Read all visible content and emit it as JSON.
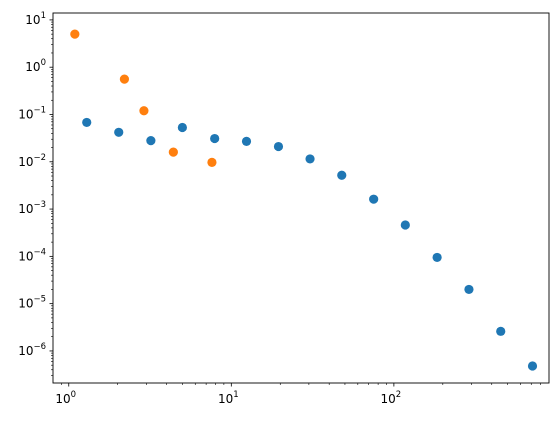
{
  "chart_data": {
    "type": "scatter",
    "x_scale": "log",
    "y_scale": "log",
    "xlim": [
      0.8,
      900
    ],
    "ylim": [
      2.1e-07,
      14
    ],
    "grid": false,
    "legend": "none",
    "x_ticks": [
      {
        "value": 1,
        "base": "10",
        "exp": "0"
      },
      {
        "value": 10,
        "base": "10",
        "exp": "1"
      },
      {
        "value": 100,
        "base": "10",
        "exp": "2"
      }
    ],
    "y_ticks": [
      {
        "value": 1e-06,
        "base": "10",
        "exp": "−6"
      },
      {
        "value": 1e-05,
        "base": "10",
        "exp": "−5"
      },
      {
        "value": 0.0001,
        "base": "10",
        "exp": "−4"
      },
      {
        "value": 0.001,
        "base": "10",
        "exp": "−3"
      },
      {
        "value": 0.01,
        "base": "10",
        "exp": "−2"
      },
      {
        "value": 0.1,
        "base": "10",
        "exp": "−1"
      },
      {
        "value": 1,
        "base": "10",
        "exp": "0"
      },
      {
        "value": 10,
        "base": "10",
        "exp": "1"
      }
    ],
    "series": [
      {
        "color": "#1f77b4",
        "x": [
          1.29,
          2.03,
          3.2,
          5.0,
          7.9,
          12.4,
          19.5,
          30.5,
          47.8,
          75.1,
          117.6,
          184.5,
          289.6,
          454.3,
          712.5
        ],
        "y": [
          0.068,
          0.042,
          0.028,
          0.053,
          0.031,
          0.027,
          0.021,
          0.0115,
          0.0052,
          0.00162,
          0.00046,
          9.5e-05,
          2e-05,
          2.6e-06,
          4.8e-07
        ]
      },
      {
        "color": "#ff7f0e",
        "x": [
          1.09,
          2.2,
          2.9,
          4.4,
          7.6
        ],
        "y": [
          5.0,
          0.56,
          0.12,
          0.016,
          0.0097
        ]
      }
    ]
  }
}
